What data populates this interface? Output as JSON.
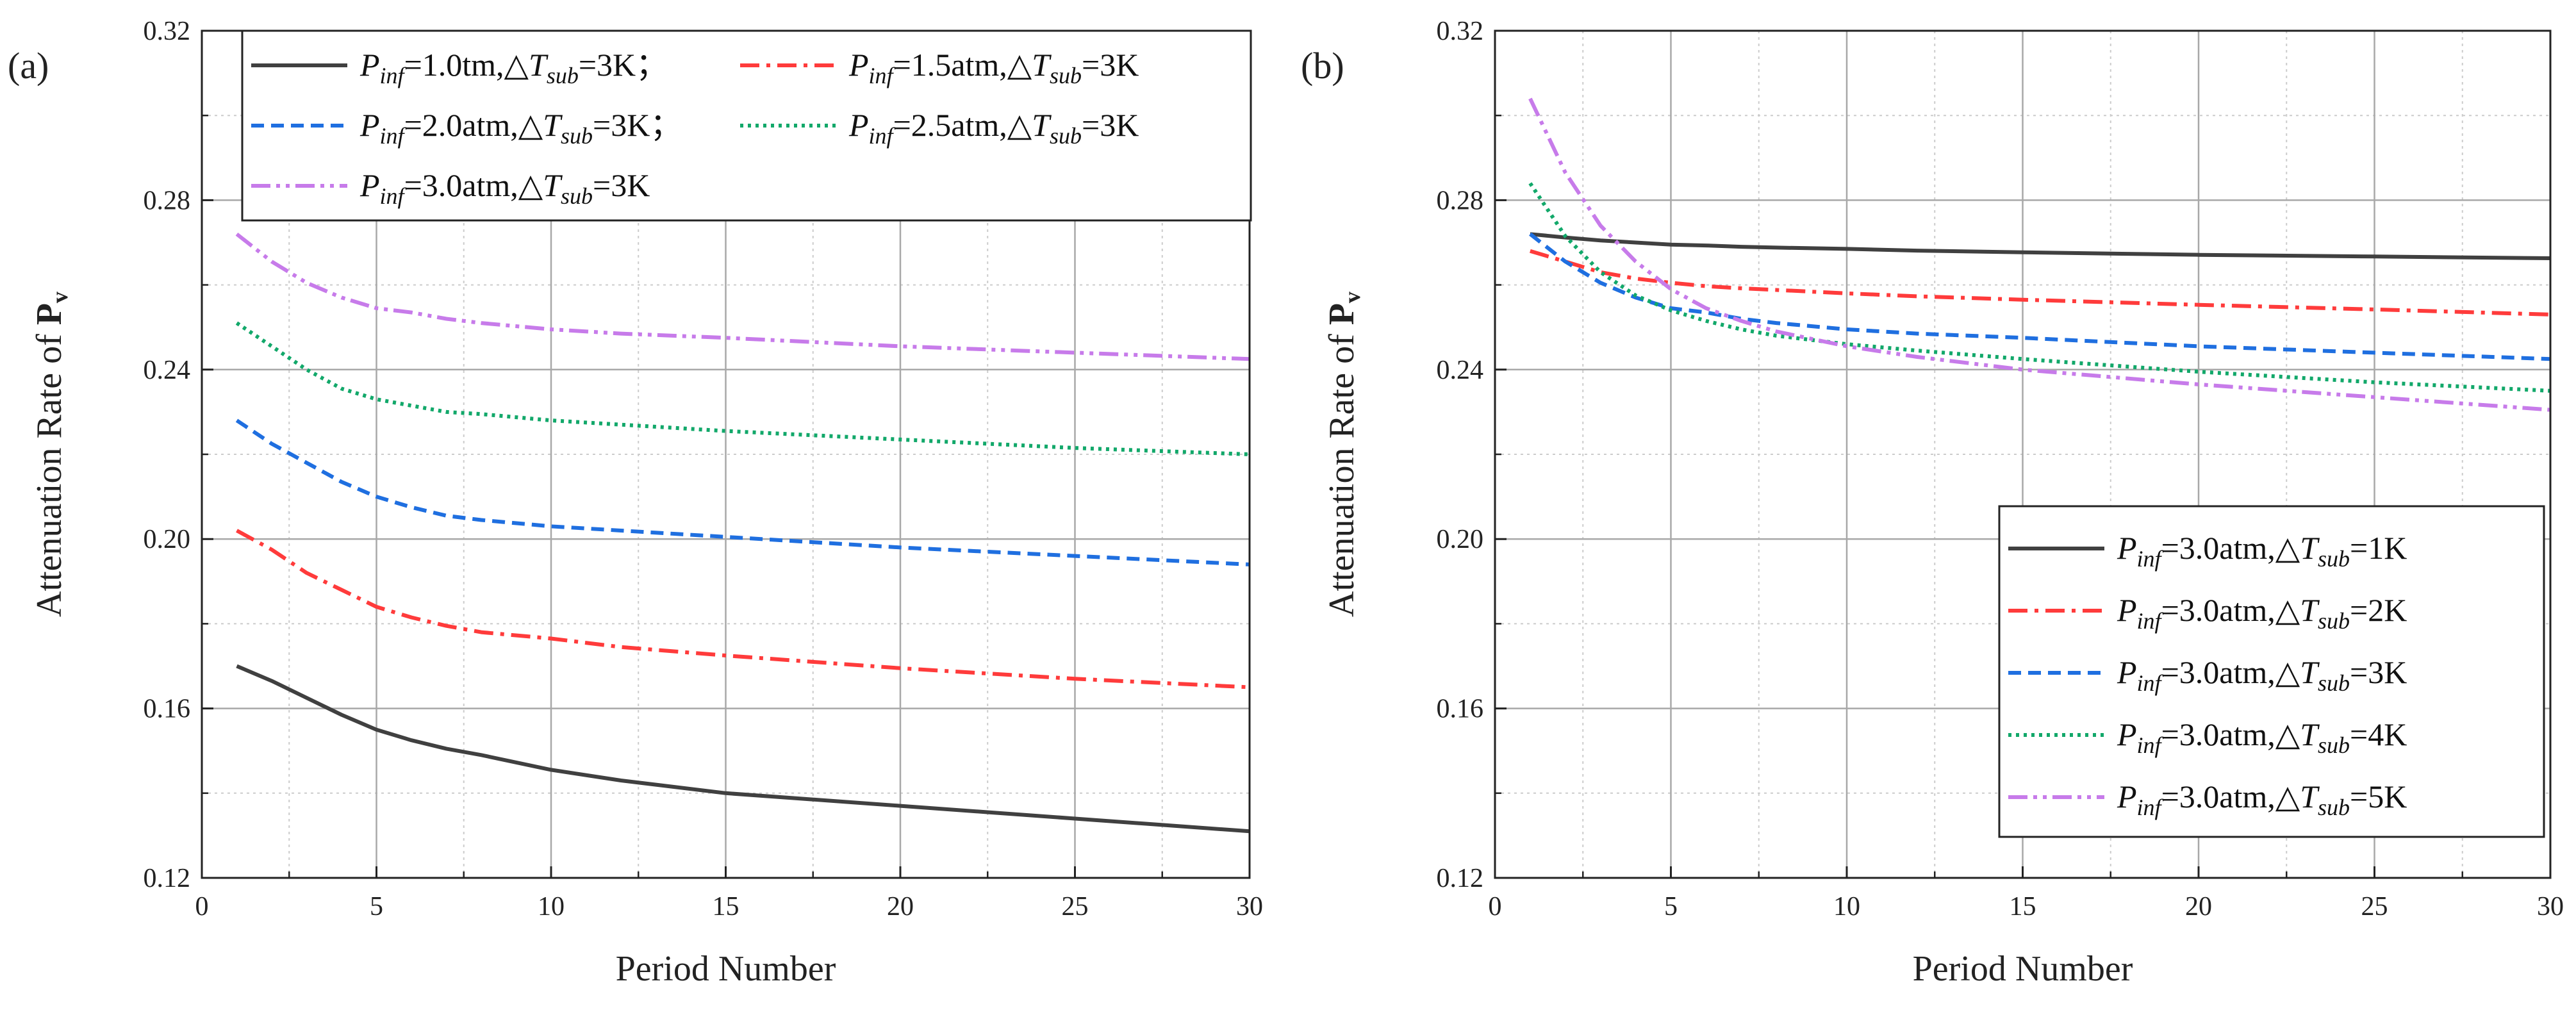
{
  "chart_data": [
    {
      "type": "line",
      "panel_label": "(a)",
      "xlabel": "Period Number",
      "ylabel": "Attenuation Rate of",
      "ylabel_symbol": "P",
      "ylabel_symbol_sub": "v",
      "xlim": [
        0,
        30
      ],
      "ylim": [
        0.12,
        0.32
      ],
      "xticks": [
        "0",
        "5",
        "10",
        "15",
        "20",
        "25",
        "30"
      ],
      "yticks": [
        "0.12",
        "0.16",
        "0.20",
        "0.24",
        "0.28",
        "0.32"
      ],
      "grid": true,
      "legend_position": "top",
      "x": [
        1,
        2,
        3,
        4,
        5,
        6,
        7,
        8,
        10,
        12,
        15,
        20,
        25,
        30
      ],
      "series": [
        {
          "name": "Pinf=1.0tm,△Tsub=3K；",
          "color": "#404040",
          "dash": "solid",
          "legend": {
            "p": "P",
            "psub": "inf",
            "mid": "=1.0tm,△",
            "t": "T",
            "tsub": "sub",
            "tail": "=3K；"
          },
          "values": [
            0.17,
            0.1665,
            0.1625,
            0.1585,
            0.155,
            0.1525,
            0.1505,
            0.149,
            0.1455,
            0.143,
            0.14,
            0.137,
            0.134,
            0.131
          ]
        },
        {
          "name": "Pinf=1.5atm,△Tsub=3K",
          "color": "#ff3b3b",
          "dash": "dashdot",
          "legend": {
            "p": "P",
            "psub": "inf",
            "mid": "=1.5atm,△",
            "t": "T",
            "tsub": "sub",
            "tail": "=3K"
          },
          "values": [
            0.202,
            0.1975,
            0.192,
            0.188,
            0.184,
            0.1815,
            0.1795,
            0.178,
            0.1765,
            0.1745,
            0.1725,
            0.1695,
            0.167,
            0.165
          ]
        },
        {
          "name": "Pinf=2.0atm,△Tsub=3K；",
          "color": "#1f6fe0",
          "dash": "dashed",
          "legend": {
            "p": "P",
            "psub": "inf",
            "mid": "=2.0atm,△",
            "t": "T",
            "tsub": "sub",
            "tail": "=3K；"
          },
          "values": [
            0.228,
            0.2225,
            0.218,
            0.2135,
            0.21,
            0.2075,
            0.2055,
            0.2045,
            0.203,
            0.202,
            0.2005,
            0.198,
            0.196,
            0.194
          ]
        },
        {
          "name": "Pinf=2.5atm,△Tsub=3K",
          "color": "#12a86a",
          "dash": "dotted",
          "legend": {
            "p": "P",
            "psub": "inf",
            "mid": "=2.5atm,△",
            "t": "T",
            "tsub": "sub",
            "tail": "=3K"
          },
          "values": [
            0.251,
            0.2455,
            0.24,
            0.2355,
            0.233,
            0.2315,
            0.23,
            0.2295,
            0.228,
            0.227,
            0.2255,
            0.2235,
            0.2215,
            0.22
          ]
        },
        {
          "name": "Pinf=3.0atm,△Tsub=3K",
          "color": "#c77bea",
          "dash": "dashdotdot",
          "legend": {
            "p": "P",
            "psub": "inf",
            "mid": "=3.0atm,△",
            "t": "T",
            "tsub": "sub",
            "tail": "=3K"
          },
          "values": [
            0.272,
            0.2655,
            0.2605,
            0.257,
            0.2545,
            0.2535,
            0.252,
            0.251,
            0.2495,
            0.2485,
            0.2475,
            0.2455,
            0.244,
            0.2425
          ]
        }
      ]
    },
    {
      "type": "line",
      "panel_label": "(b)",
      "xlabel": "Period Number",
      "ylabel": "Attenuation Rate of",
      "ylabel_symbol": "P",
      "ylabel_symbol_sub": "v",
      "xlim": [
        0,
        30
      ],
      "ylim": [
        0.12,
        0.32
      ],
      "xticks": [
        "0",
        "5",
        "10",
        "15",
        "20",
        "25",
        "30"
      ],
      "yticks": [
        "0.12",
        "0.16",
        "0.20",
        "0.24",
        "0.28",
        "0.32"
      ],
      "grid": true,
      "legend_position": "bottom-right",
      "x": [
        1,
        2,
        3,
        4,
        5,
        6,
        7,
        8,
        10,
        12,
        15,
        20,
        25,
        30
      ],
      "series": [
        {
          "name": "Pinf=3.0atm,△Tsub=1K",
          "color": "#404040",
          "dash": "solid",
          "legend": {
            "p": "P",
            "psub": "inf",
            "mid": "=3.0atm,△",
            "t": "T",
            "tsub": "sub",
            "tail": "=1K"
          },
          "values": [
            0.272,
            0.2712,
            0.2705,
            0.27,
            0.2695,
            0.2693,
            0.269,
            0.2688,
            0.2685,
            0.2681,
            0.2677,
            0.2671,
            0.2667,
            0.2663
          ]
        },
        {
          "name": "Pinf=3.0atm,△Tsub=2K",
          "color": "#ff3b3b",
          "dash": "dashdot",
          "legend": {
            "p": "P",
            "psub": "inf",
            "mid": "=3.0atm,△",
            "t": "T",
            "tsub": "sub",
            "tail": "=2K"
          },
          "values": [
            0.268,
            0.2655,
            0.263,
            0.2615,
            0.2605,
            0.2597,
            0.2592,
            0.2588,
            0.258,
            0.2573,
            0.2565,
            0.2553,
            0.2542,
            0.253
          ]
        },
        {
          "name": "Pinf=3.0atm,△Tsub=3K",
          "color": "#1f6fe0",
          "dash": "dashed",
          "legend": {
            "p": "P",
            "psub": "inf",
            "mid": "=3.0atm,△",
            "t": "T",
            "tsub": "sub",
            "tail": "=3K"
          },
          "values": [
            0.272,
            0.2655,
            0.2605,
            0.257,
            0.2545,
            0.2535,
            0.252,
            0.251,
            0.2495,
            0.2485,
            0.2475,
            0.2455,
            0.244,
            0.2425
          ]
        },
        {
          "name": "Pinf=3.0atm,△Tsub=4K",
          "color": "#12a86a",
          "dash": "dotted",
          "legend": {
            "p": "P",
            "psub": "inf",
            "mid": "=3.0atm,△",
            "t": "T",
            "tsub": "sub",
            "tail": "=4K"
          },
          "values": [
            0.284,
            0.2715,
            0.263,
            0.2575,
            0.254,
            0.2515,
            0.2495,
            0.248,
            0.246,
            0.2445,
            0.2425,
            0.2395,
            0.237,
            0.235
          ]
        },
        {
          "name": "Pinf=3.0atm,△Tsub=5K",
          "color": "#c77bea",
          "dash": "dashdotdot",
          "legend": {
            "p": "P",
            "psub": "inf",
            "mid": "=3.0atm,△",
            "t": "T",
            "tsub": "sub",
            "tail": "=5K"
          },
          "values": [
            0.304,
            0.2865,
            0.274,
            0.2655,
            0.259,
            0.2545,
            0.2515,
            0.249,
            0.2455,
            0.243,
            0.24,
            0.2365,
            0.2335,
            0.2305
          ]
        }
      ]
    }
  ]
}
